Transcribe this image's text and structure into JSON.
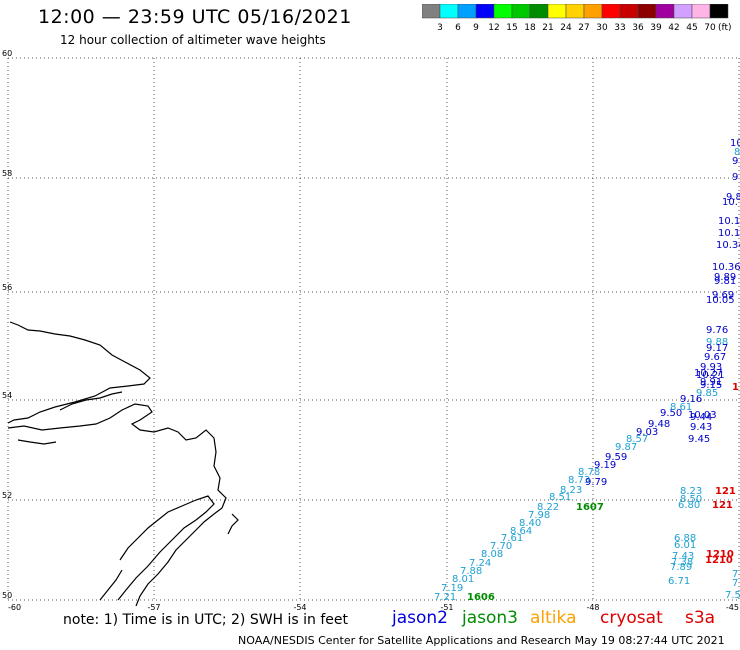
{
  "header": {
    "title": "12:00 — 23:59 UTC 05/16/2021",
    "subtitle": "12 hour collection of altimeter wave heights"
  },
  "color_scale": {
    "unit": "(ft)",
    "steps": [
      {
        "color": "#808080",
        "label": "3"
      },
      {
        "color": "#00ffff",
        "label": "6"
      },
      {
        "color": "#00a0ff",
        "label": "9"
      },
      {
        "color": "#0000ff",
        "label": "12"
      },
      {
        "color": "#00ff00",
        "label": "15"
      },
      {
        "color": "#00c800",
        "label": "18"
      },
      {
        "color": "#008c00",
        "label": "21"
      },
      {
        "color": "#ffff00",
        "label": "24"
      },
      {
        "color": "#ffd200",
        "label": "27"
      },
      {
        "color": "#ffa000",
        "label": "30"
      },
      {
        "color": "#ff0000",
        "label": "33"
      },
      {
        "color": "#c80000",
        "label": "36"
      },
      {
        "color": "#8c0000",
        "label": "39"
      },
      {
        "color": "#a000a0",
        "label": "42"
      },
      {
        "color": "#d2a0ff",
        "label": "45"
      },
      {
        "color": "#ffb4e6",
        "label": "70"
      },
      {
        "color": "#000000",
        "label": ""
      }
    ]
  },
  "map": {
    "lat_labels": [
      "60",
      "58",
      "56",
      "54",
      "52",
      "50"
    ],
    "lon_labels": [
      "-60",
      "-57",
      "-54",
      "-51",
      "-48",
      "-45"
    ],
    "observations": [
      {
        "t": "7.21",
        "c": "#1ea0d2"
      },
      {
        "t": "7.19",
        "c": "#1ea0d2"
      },
      {
        "t": "8.01",
        "c": "#1ea0d2"
      },
      {
        "t": "7.88",
        "c": "#1ea0d2"
      },
      {
        "t": "7.24",
        "c": "#1ea0d2"
      },
      {
        "t": "8.08",
        "c": "#1ea0d2"
      },
      {
        "t": "7.70",
        "c": "#1ea0d2"
      },
      {
        "t": "7.61",
        "c": "#1ea0d2"
      },
      {
        "t": "8.64",
        "c": "#1ea0d2"
      },
      {
        "t": "8.40",
        "c": "#1ea0d2"
      },
      {
        "t": "7.98",
        "c": "#1ea0d2"
      },
      {
        "t": "8.22",
        "c": "#1ea0d2"
      },
      {
        "t": "8.51",
        "c": "#1ea0d2"
      },
      {
        "t": "8.23",
        "c": "#1ea0d2"
      },
      {
        "t": "8.73",
        "c": "#1ea0d2"
      },
      {
        "t": "8.78",
        "c": "#1ea0d2"
      },
      {
        "t": "9.79",
        "c": "#0000c8"
      },
      {
        "t": "9.19",
        "c": "#0000c8"
      },
      {
        "t": "9.59",
        "c": "#0000c8"
      },
      {
        "t": "9.87",
        "c": "#1ea0d2"
      },
      {
        "t": "8.57",
        "c": "#1ea0d2"
      },
      {
        "t": "9.03",
        "c": "#0000c8"
      },
      {
        "t": "9.48",
        "c": "#0000c8"
      },
      {
        "t": "9.50",
        "c": "#0000c8"
      },
      {
        "t": "8.61",
        "c": "#1ea0d2"
      },
      {
        "t": "10.03",
        "c": "#0000c8"
      },
      {
        "t": "9.43",
        "c": "#0000c8"
      },
      {
        "t": "9.45",
        "c": "#0000c8"
      },
      {
        "t": "9.16",
        "c": "#0000c8"
      },
      {
        "t": "9.44",
        "c": "#0000c8"
      },
      {
        "t": "1606",
        "c": "#008c00"
      },
      {
        "t": "1607",
        "c": "#008c00"
      },
      {
        "t": "8.23",
        "c": "#1ea0d2"
      },
      {
        "t": "8.50",
        "c": "#1ea0d2"
      },
      {
        "t": "6.80",
        "c": "#1ea0d2"
      },
      {
        "t": "121",
        "c": "#dc0000"
      },
      {
        "t": "121",
        "c": "#dc0000"
      },
      {
        "t": "6.88",
        "c": "#1ea0d2"
      },
      {
        "t": "6.01",
        "c": "#1ea0d2"
      },
      {
        "t": "7.43",
        "c": "#1ea0d2"
      },
      {
        "t": "7.38",
        "c": "#1ea0d2"
      },
      {
        "t": "7.89",
        "c": "#1ea0d2"
      },
      {
        "t": "6.71",
        "c": "#1ea0d2"
      },
      {
        "t": "1210",
        "c": "#dc0000"
      },
      {
        "t": "1210",
        "c": "#dc0000"
      },
      {
        "t": "7",
        "c": "#1ea0d2"
      },
      {
        "t": "7",
        "c": "#1ea0d2"
      },
      {
        "t": "7.5",
        "c": "#1ea0d2"
      },
      {
        "t": "9.76",
        "c": "#0000c8"
      },
      {
        "t": "9.88",
        "c": "#1ea0d2"
      },
      {
        "t": "9.17",
        "c": "#0000c8"
      },
      {
        "t": "9.67",
        "c": "#0000c8"
      },
      {
        "t": "9.93",
        "c": "#0000c8"
      },
      {
        "t": "10.21",
        "c": "#0000c8"
      },
      {
        "t": "10.27",
        "c": "#0000c8"
      },
      {
        "t": "9.91",
        "c": "#0000c8"
      },
      {
        "t": "9.15",
        "c": "#0000c8"
      },
      {
        "t": "9.85",
        "c": "#1ea0d2"
      },
      {
        "t": "1",
        "c": "#dc0000"
      },
      {
        "t": "10.05",
        "c": "#0000c8"
      },
      {
        "t": "10.36",
        "c": "#0000c8"
      },
      {
        "t": "9.89",
        "c": "#0000c8"
      },
      {
        "t": "9.81",
        "c": "#0000c8"
      },
      {
        "t": "9.69",
        "c": "#0000c8"
      },
      {
        "t": "10.1",
        "c": "#0000c8"
      },
      {
        "t": "10.1",
        "c": "#0000c8"
      },
      {
        "t": "10.34",
        "c": "#0000c8"
      },
      {
        "t": "9.8",
        "c": "#0000c8"
      },
      {
        "t": "10.",
        "c": "#0000c8"
      },
      {
        "t": "10",
        "c": "#0000c8"
      },
      {
        "t": "8",
        "c": "#1ea0d2"
      },
      {
        "t": "9",
        "c": "#0000c8"
      },
      {
        "t": "9",
        "c": "#0000c8"
      }
    ]
  },
  "footer": {
    "note": "note: 1) Time is in UTC; 2) SWH is in feet",
    "satellites": [
      {
        "name": "jason2",
        "color": "#0000dc"
      },
      {
        "name": "jason3",
        "color": "#008c00"
      },
      {
        "name": "altika",
        "color": "#ffa000"
      },
      {
        "name": "cryosat",
        "color": "#dc0000"
      },
      {
        "name": "s3a",
        "color": "#dc0000"
      }
    ],
    "credit": "NOAA/NESDIS Center for Satellite Applications and Research    May 19 08:27:44 UTC 2021"
  }
}
